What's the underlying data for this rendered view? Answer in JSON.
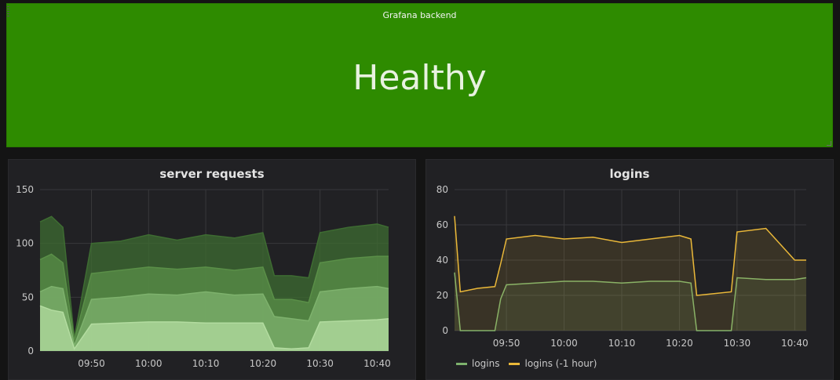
{
  "stat_panel": {
    "title": "Grafana backend",
    "value": "Healthy",
    "color": "#2e8b00"
  },
  "panels": [
    {
      "title": "server requests",
      "chart_data": {
        "type": "area",
        "title": "server requests",
        "x_ticks": [
          "09:50",
          "10:00",
          "10:10",
          "10:20",
          "10:30",
          "10:40"
        ],
        "ylim": [
          0,
          150
        ],
        "y_ticks": [
          0,
          50,
          100,
          150
        ],
        "x": [
          "09:41",
          "09:43",
          "09:45",
          "09:47",
          "09:50",
          "09:55",
          "10:00",
          "10:05",
          "10:10",
          "10:15",
          "10:20",
          "10:22",
          "10:25",
          "10:28",
          "10:30",
          "10:35",
          "10:40",
          "10:42"
        ],
        "series": [
          {
            "values": [
              42,
              38,
              36,
              2,
              25,
              26,
              27,
              27,
              26,
              26,
              26,
              3,
              2,
              3,
              27,
              28,
              29,
              30
            ],
            "color": "#b3dca0"
          },
          {
            "values": [
              55,
              60,
              58,
              5,
              48,
              50,
              53,
              52,
              55,
              52,
              53,
              32,
              30,
              28,
              55,
              58,
              60,
              58
            ],
            "color": "#7eb26d"
          },
          {
            "values": [
              85,
              90,
              82,
              10,
              72,
              75,
              78,
              76,
              78,
              75,
              78,
              48,
              48,
              45,
              82,
              86,
              88,
              88
            ],
            "color": "#5a8f48"
          },
          {
            "values": [
              120,
              125,
              115,
              12,
              100,
              102,
              108,
              103,
              108,
              105,
              110,
              70,
              70,
              68,
              110,
              115,
              118,
              115
            ],
            "color": "#3e6c32"
          }
        ],
        "grid": true
      }
    },
    {
      "title": "logins",
      "chart_data": {
        "type": "line",
        "title": "logins",
        "x_ticks": [
          "09:50",
          "10:00",
          "10:10",
          "10:20",
          "10:30",
          "10:40"
        ],
        "ylim": [
          0,
          80
        ],
        "y_ticks": [
          0,
          20,
          40,
          60,
          80
        ],
        "x": [
          "09:41",
          "09:42",
          "09:45",
          "09:48",
          "09:49",
          "09:50",
          "09:55",
          "10:00",
          "10:05",
          "10:10",
          "10:15",
          "10:20",
          "10:22",
          "10:23",
          "10:26",
          "10:29",
          "10:30",
          "10:35",
          "10:40",
          "10:42"
        ],
        "series": [
          {
            "name": "logins",
            "values": [
              33,
              0,
              0,
              0,
              18,
              26,
              27,
              28,
              28,
              27,
              28,
              28,
              27,
              0,
              0,
              0,
              30,
              29,
              29,
              30
            ],
            "color": "#7eb26d"
          },
          {
            "name": "logins (-1 hour)",
            "values": [
              65,
              22,
              24,
              25,
              38,
              52,
              54,
              52,
              53,
              50,
              52,
              54,
              52,
              20,
              21,
              22,
              56,
              58,
              40,
              40
            ],
            "color": "#eab839"
          }
        ],
        "legend": "bottom-left",
        "grid": true
      }
    }
  ]
}
